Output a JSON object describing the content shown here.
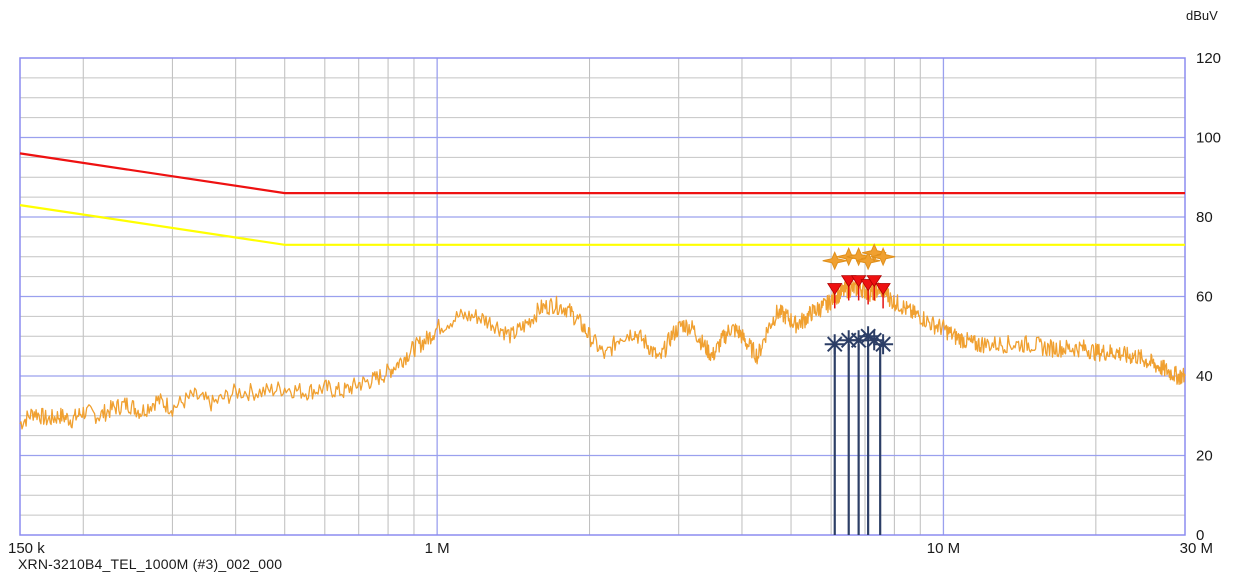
{
  "footer_text": "XRN-3210B4_TEL_1000M (#3)_002_000",
  "chart_data": {
    "type": "line",
    "title": "",
    "xlabel": "",
    "ylabel": "dBuV",
    "x_scale": "log",
    "xlim": [
      150000,
      30000000
    ],
    "ylim": [
      0,
      120
    ],
    "grid": true,
    "x_tick_labels": [
      {
        "value": 150000,
        "label": "150 k"
      },
      {
        "value": 1000000,
        "label": "1 M"
      },
      {
        "value": 10000000,
        "label": "10 M"
      },
      {
        "value": 30000000,
        "label": "30 M"
      }
    ],
    "y_ticks": [
      0,
      20,
      40,
      60,
      80,
      100,
      120
    ],
    "limit_lines": [
      {
        "color": "#ee1111",
        "points": [
          [
            150000,
            96
          ],
          [
            500000,
            86
          ],
          [
            30000000,
            86
          ]
        ]
      },
      {
        "color": "#ffff00",
        "points": [
          [
            150000,
            83
          ],
          [
            500000,
            73
          ],
          [
            30000000,
            73
          ]
        ]
      }
    ],
    "series": [
      {
        "color": "#f0a030",
        "x": [
          150000,
          160000,
          170000,
          180000,
          190000,
          200000,
          215000,
          230000,
          245000,
          260000,
          280000,
          300000,
          330000,
          360000,
          400000,
          450000,
          500000,
          550000,
          600000,
          650000,
          700000,
          750000,
          800000,
          850000,
          900000,
          950000,
          1000000,
          1100000,
          1200000,
          1300000,
          1400000,
          1500000,
          1600000,
          1700000,
          1800000,
          1900000,
          2000000,
          2150000,
          2300000,
          2450000,
          2600000,
          2750000,
          2900000,
          3050000,
          3200000,
          3350000,
          3500000,
          3650000,
          3800000,
          3950000,
          4100000,
          4300000,
          4500000,
          4700000,
          4900000,
          5100000,
          5300000,
          5500000,
          5700000,
          5900000,
          6100000,
          6300000,
          6500000,
          6700000,
          6900000,
          7100000,
          7300000,
          7500000,
          7700000,
          7900000,
          8200000,
          8600000,
          9000000,
          9500000,
          10000000,
          10500000,
          11000000,
          11500000,
          12000000,
          13000000,
          14000000,
          15000000,
          16000000,
          17000000,
          18000000,
          19000000,
          20000000,
          21000000,
          22000000,
          23000000,
          24000000,
          25000000,
          26000000,
          27000000,
          28000000,
          29000000,
          30000000
        ],
        "y": [
          28,
          31,
          29,
          30,
          29,
          31,
          30,
          32,
          33,
          31,
          34,
          32,
          35,
          33,
          36,
          36,
          37,
          36,
          37,
          36,
          38,
          39,
          41,
          44,
          47,
          49,
          52,
          55,
          55,
          53,
          50,
          53,
          57,
          58,
          57,
          54,
          50,
          45,
          50,
          51,
          48,
          44,
          50,
          53,
          52,
          48,
          45,
          49,
          52,
          51,
          48,
          45,
          52,
          56,
          55,
          53,
          54,
          56,
          57,
          58,
          60,
          61,
          62,
          62,
          62,
          61,
          61,
          62,
          61,
          59,
          58,
          56,
          55,
          53,
          52,
          50,
          49,
          48,
          48,
          48,
          48,
          48,
          47,
          47,
          47,
          47,
          46,
          46,
          46,
          45,
          45,
          44,
          43,
          42,
          41,
          40,
          40
        ]
      }
    ],
    "markers_quasi_peak": [
      {
        "x": 6100000,
        "y": 69
      },
      {
        "x": 6500000,
        "y": 70
      },
      {
        "x": 6800000,
        "y": 70
      },
      {
        "x": 7100000,
        "y": 69
      },
      {
        "x": 7300000,
        "y": 71
      },
      {
        "x": 7600000,
        "y": 70
      }
    ],
    "markers_peak": [
      {
        "x": 6100000,
        "y": 62
      },
      {
        "x": 6500000,
        "y": 64
      },
      {
        "x": 6800000,
        "y": 64
      },
      {
        "x": 7100000,
        "y": 63
      },
      {
        "x": 7300000,
        "y": 64
      },
      {
        "x": 7600000,
        "y": 62
      }
    ],
    "markers_average": [
      {
        "x": 6100000,
        "y": 48
      },
      {
        "x": 6500000,
        "y": 49
      },
      {
        "x": 6800000,
        "y": 49
      },
      {
        "x": 7100000,
        "y": 50
      },
      {
        "x": 7300000,
        "y": 49
      },
      {
        "x": 7600000,
        "y": 48
      }
    ],
    "marker_dark_line_freqs": [
      6100000,
      6500000,
      6800000,
      7100000,
      7500000
    ]
  }
}
